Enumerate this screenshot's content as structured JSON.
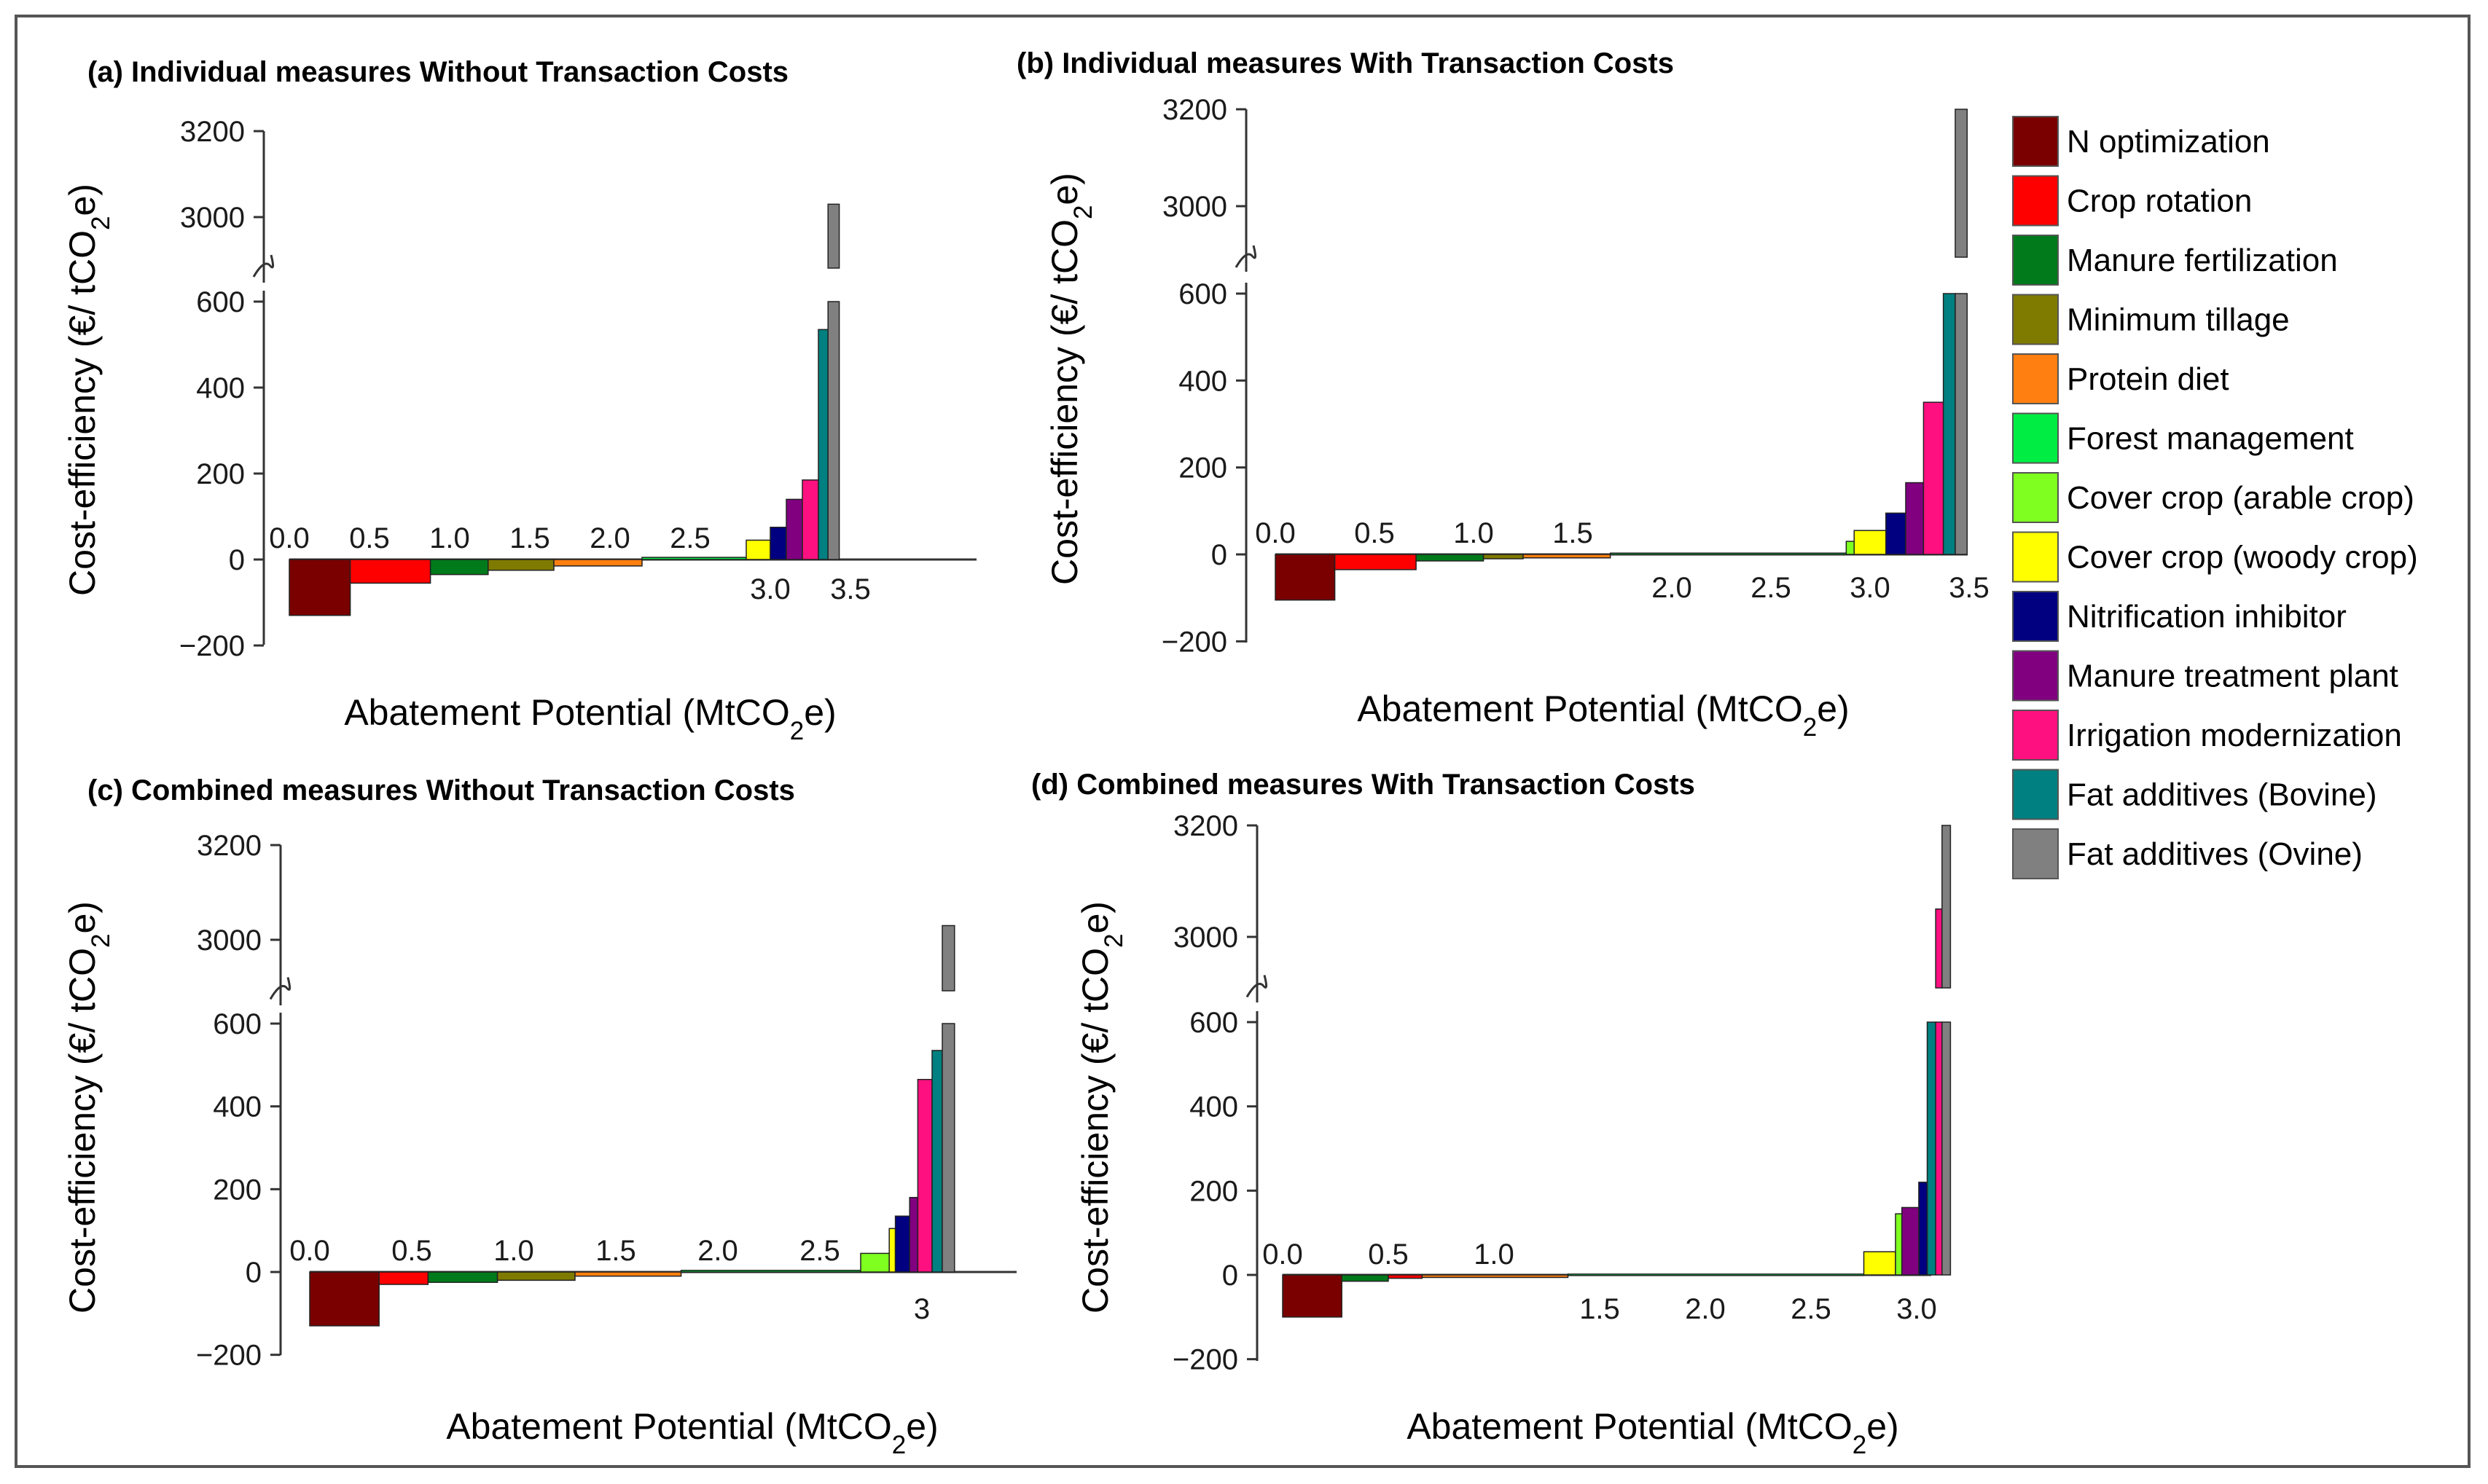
{
  "legend": {
    "items": [
      {
        "label": "N optimization",
        "color": "#7a0000"
      },
      {
        "label": "Crop rotation",
        "color": "#ff0000"
      },
      {
        "label": "Manure fertilization",
        "color": "#007a1a"
      },
      {
        "label": "Minimum tillage",
        "color": "#7f7b00"
      },
      {
        "label": "Protein diet",
        "color": "#ff7f10"
      },
      {
        "label": "Forest management",
        "color": "#00ee44"
      },
      {
        "label": "Cover crop (arable crop)",
        "color": "#7fff20"
      },
      {
        "label": "Cover crop (woody crop)",
        "color": "#ffff00"
      },
      {
        "label": "Nitrification inhibitor",
        "color": "#000080"
      },
      {
        "label": "Manure treatment plant",
        "color": "#800080"
      },
      {
        "label": "Irrigation modernization",
        "color": "#ff1080"
      },
      {
        "label": "Fat additives (Bovine)",
        "color": "#008080"
      },
      {
        "label": "Fat additives (Ovine)",
        "color": "#808080"
      }
    ]
  },
  "chart_data": [
    {
      "id": "a",
      "type": "bar",
      "title": "(a) Individual measures Without Transaction Costs",
      "xlabel": "Abatement Potential (MtCO2e)",
      "ylabel": "Cost-efficiency (€/ tCO2e)",
      "ylim": [
        -200,
        3200
      ],
      "axis_break": [
        600,
        3000
      ],
      "y_ticks": [
        "3200",
        "3000",
        "600",
        "400",
        "200",
        "0",
        "−200"
      ],
      "x_ticks_above": [
        "0.0",
        "0.5",
        "1.0",
        "1.5",
        "2.0",
        "2.5"
      ],
      "x_ticks_below": [
        "3.0",
        "3.5"
      ],
      "bars": [
        {
          "measure": "N optimization",
          "x0": 0.0,
          "x1": 0.38,
          "value": -130
        },
        {
          "measure": "Crop rotation",
          "x0": 0.38,
          "x1": 0.88,
          "value": -55
        },
        {
          "measure": "Manure fertilization",
          "x0": 0.88,
          "x1": 1.24,
          "value": -35
        },
        {
          "measure": "Minimum tillage",
          "x0": 1.24,
          "x1": 1.65,
          "value": -25
        },
        {
          "measure": "Protein diet",
          "x0": 1.65,
          "x1": 2.2,
          "value": -15
        },
        {
          "measure": "Forest management",
          "x0": 2.2,
          "x1": 2.85,
          "value": 5
        },
        {
          "measure": "Cover crop (woody crop)",
          "x0": 2.85,
          "x1": 3.0,
          "value": 45
        },
        {
          "measure": "Nitrification inhibitor",
          "x0": 3.0,
          "x1": 3.1,
          "value": 75
        },
        {
          "measure": "Manure treatment plant",
          "x0": 3.1,
          "x1": 3.2,
          "value": 140
        },
        {
          "measure": "Irrigation modernization",
          "x0": 3.2,
          "x1": 3.3,
          "value": 185
        },
        {
          "measure": "Fat additives (Bovine)",
          "x0": 3.3,
          "x1": 3.36,
          "value": 535
        },
        {
          "measure": "Fat additives (Ovine)",
          "x0": 3.36,
          "x1": 3.43,
          "value": 3030
        }
      ]
    },
    {
      "id": "b",
      "type": "bar",
      "title": "(b) Individual measures With Transaction Costs",
      "xlabel": "Abatement Potential (MtCO2e)",
      "ylabel": "Cost-efficiency (€/ tCO2e)",
      "ylim": [
        -200,
        3200
      ],
      "axis_break": [
        600,
        3000
      ],
      "y_ticks": [
        "3200",
        "3000",
        "600",
        "400",
        "200",
        "0",
        "−200"
      ],
      "x_ticks_above": [
        "0.0",
        "0.5",
        "1.0",
        "1.5"
      ],
      "x_ticks_below": [
        "2.0",
        "2.5",
        "3.0",
        "3.5"
      ],
      "bars": [
        {
          "measure": "N optimization",
          "x0": 0.0,
          "x1": 0.3,
          "value": -105
        },
        {
          "measure": "Crop rotation",
          "x0": 0.3,
          "x1": 0.71,
          "value": -35
        },
        {
          "measure": "Manure fertilization",
          "x0": 0.71,
          "x1": 1.05,
          "value": -15
        },
        {
          "measure": "Minimum tillage",
          "x0": 1.05,
          "x1": 1.25,
          "value": -10
        },
        {
          "measure": "Protein diet",
          "x0": 1.25,
          "x1": 1.69,
          "value": -8
        },
        {
          "measure": "Forest management",
          "x0": 1.69,
          "x1": 2.88,
          "value": 3
        },
        {
          "measure": "Cover crop (arable crop)",
          "x0": 2.88,
          "x1": 2.92,
          "value": 30
        },
        {
          "measure": "Cover crop (woody crop)",
          "x0": 2.92,
          "x1": 3.08,
          "value": 55
        },
        {
          "measure": "Nitrification inhibitor",
          "x0": 3.08,
          "x1": 3.18,
          "value": 95
        },
        {
          "measure": "Manure treatment plant",
          "x0": 3.18,
          "x1": 3.27,
          "value": 165
        },
        {
          "measure": "Irrigation modernization",
          "x0": 3.27,
          "x1": 3.37,
          "value": 350
        },
        {
          "measure": "Fat additives (Bovine)",
          "x0": 3.37,
          "x1": 3.43,
          "value": 600
        },
        {
          "measure": "Fat additives (Ovine)",
          "x0": 3.43,
          "x1": 3.49,
          "value": 3200
        }
      ]
    },
    {
      "id": "c",
      "type": "bar",
      "title": "(c) Combined measures Without Transaction Costs",
      "xlabel": "Abatement Potential (MtCO2e)",
      "ylabel": "Cost-efficiency (€/ tCO2e)",
      "ylim": [
        -200,
        3200
      ],
      "axis_break": [
        600,
        3000
      ],
      "y_ticks": [
        "3200",
        "3000",
        "600",
        "400",
        "200",
        "0",
        "−200"
      ],
      "x_ticks_above": [
        "0.0",
        "0.5",
        "1.0",
        "1.5",
        "2.0",
        "2.5"
      ],
      "x_ticks_below": [
        "3"
      ],
      "bars": [
        {
          "measure": "N optimization",
          "x0": 0.0,
          "x1": 0.34,
          "value": -130
        },
        {
          "measure": "Crop rotation",
          "x0": 0.34,
          "x1": 0.58,
          "value": -30
        },
        {
          "measure": "Manure fertilization",
          "x0": 0.58,
          "x1": 0.92,
          "value": -25
        },
        {
          "measure": "Minimum tillage",
          "x0": 0.92,
          "x1": 1.3,
          "value": -20
        },
        {
          "measure": "Protein diet",
          "x0": 1.3,
          "x1": 1.82,
          "value": -10
        },
        {
          "measure": "Forest management",
          "x0": 1.82,
          "x1": 2.7,
          "value": 4
        },
        {
          "measure": "Cover crop (arable crop)",
          "x0": 2.7,
          "x1": 2.84,
          "value": 45
        },
        {
          "measure": "Cover crop (woody crop)",
          "x0": 2.84,
          "x1": 2.87,
          "value": 105
        },
        {
          "measure": "Nitrification inhibitor",
          "x0": 2.87,
          "x1": 2.94,
          "value": 135
        },
        {
          "measure": "Manure treatment plant",
          "x0": 2.94,
          "x1": 2.98,
          "value": 180
        },
        {
          "measure": "Irrigation modernization",
          "x0": 2.98,
          "x1": 3.05,
          "value": 465
        },
        {
          "measure": "Fat additives (Bovine)",
          "x0": 3.05,
          "x1": 3.1,
          "value": 535
        },
        {
          "measure": "Fat additives (Ovine)",
          "x0": 3.1,
          "x1": 3.16,
          "value": 3030
        }
      ]
    },
    {
      "id": "d",
      "type": "bar",
      "title": "(d) Combined measures With Transaction Costs",
      "xlabel": "Abatement Potential (MtCO2e)",
      "ylabel": "Cost-efficiency (€/ tCO2e)",
      "ylim": [
        -200,
        3200
      ],
      "axis_break": [
        600,
        3000
      ],
      "y_ticks": [
        "3200",
        "3000",
        "600",
        "400",
        "200",
        "0",
        "−200"
      ],
      "x_ticks_above": [
        "0.0",
        "0.5",
        "1.0"
      ],
      "x_ticks_below": [
        "1.5",
        "2.0",
        "2.5",
        "3.0"
      ],
      "bars": [
        {
          "measure": "N optimization",
          "x0": 0.0,
          "x1": 0.28,
          "value": -100
        },
        {
          "measure": "Manure fertilization",
          "x0": 0.28,
          "x1": 0.5,
          "value": -15
        },
        {
          "measure": "Crop rotation",
          "x0": 0.5,
          "x1": 0.66,
          "value": -8
        },
        {
          "measure": "Protein diet",
          "x0": 0.66,
          "x1": 1.35,
          "value": -6
        },
        {
          "measure": "Forest management",
          "x0": 1.35,
          "x1": 2.75,
          "value": 2
        },
        {
          "measure": "Cover crop (woody crop)",
          "x0": 2.75,
          "x1": 2.9,
          "value": 55
        },
        {
          "measure": "Cover crop (arable crop)",
          "x0": 2.9,
          "x1": 2.93,
          "value": 145
        },
        {
          "measure": "Manure treatment plant",
          "x0": 2.93,
          "x1": 3.01,
          "value": 160
        },
        {
          "measure": "Nitrification inhibitor",
          "x0": 3.01,
          "x1": 3.05,
          "value": 220
        },
        {
          "measure": "Fat additives (Bovine)",
          "x0": 3.05,
          "x1": 3.09,
          "value": 600
        },
        {
          "measure": "Irrigation modernization",
          "x0": 3.09,
          "x1": 3.12,
          "value": 3050
        },
        {
          "measure": "Fat additives (Ovine)",
          "x0": 3.12,
          "x1": 3.16,
          "value": 3200
        }
      ]
    }
  ]
}
